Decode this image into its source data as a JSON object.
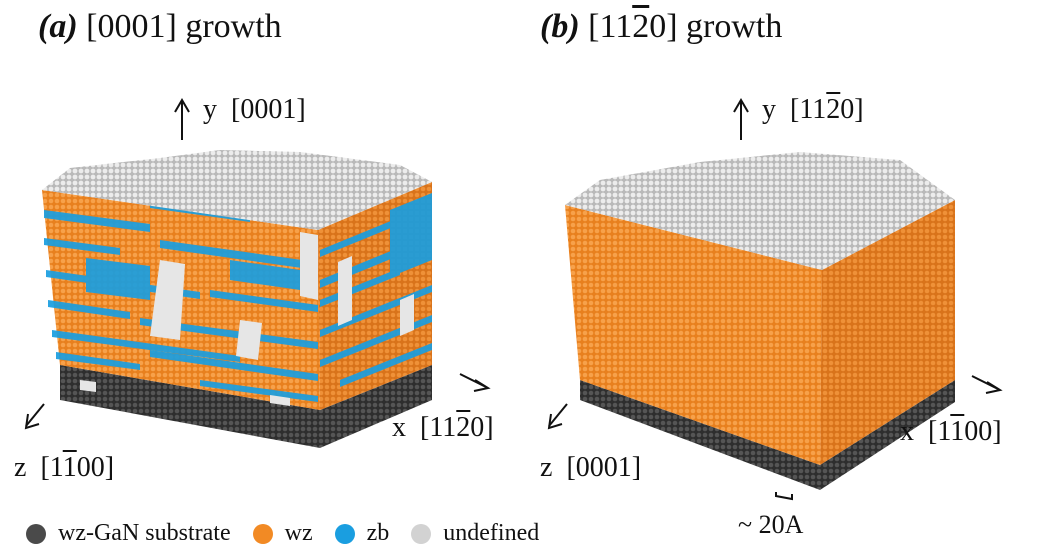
{
  "panel_a": {
    "letter": "(a)",
    "direction_prefix": "[0001]",
    "direction_suffix": " growth",
    "axis_y_label": "y",
    "axis_y_dir": "[0001]",
    "axis_x_label": "x",
    "axis_x_pre": "[11",
    "axis_x_bar": "2",
    "axis_x_post": "0]",
    "axis_z_label": "z",
    "axis_z_pre": "[1",
    "axis_z_bar": "1",
    "axis_z_post": "00]"
  },
  "panel_b": {
    "letter": "(b)",
    "direction_pre": "[11",
    "direction_bar": "2",
    "direction_post": "0]",
    "direction_suffix": " growth",
    "axis_y_label": "y",
    "axis_y_pre": "[11",
    "axis_y_bar": "2",
    "axis_y_post": "0]",
    "axis_x_label": "x",
    "axis_x_pre": "[1",
    "axis_x_bar": "1",
    "axis_x_post": "00]",
    "axis_z_label": "z",
    "axis_z_dir": "[0001]",
    "scale_label": "~ 20A"
  },
  "legend": [
    {
      "label": "wz-GaN substrate",
      "color": "#4a4a4a"
    },
    {
      "label": "wz",
      "color": "#f28a24"
    },
    {
      "label": "zb",
      "color": "#1a9ee0"
    },
    {
      "label": "undefined",
      "color": "#d2d2d2"
    }
  ],
  "colors": {
    "substrate": "#4a4a4a",
    "wz": "#f28a24",
    "zb": "#1a9ee0",
    "undefined": "#d2d2d2"
  }
}
